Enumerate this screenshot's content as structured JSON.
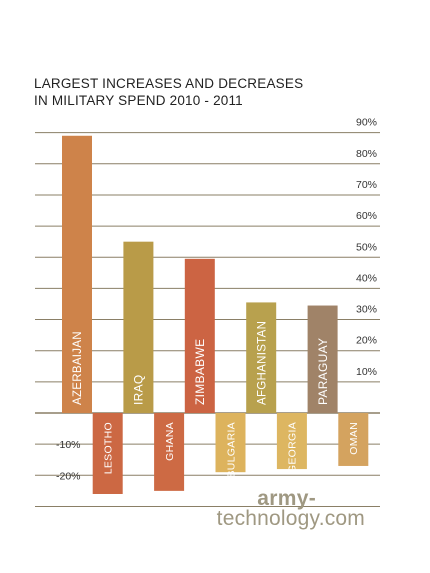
{
  "chart_data": {
    "type": "bar",
    "title": [
      "LARGEST INCREASES AND DECREASES",
      "IN MILITARY SPEND 2010 - 2011"
    ],
    "categories": [
      "AZERBAIJAN",
      "LESOTHO",
      "IRAQ",
      "GHANA",
      "ZIMBABWE",
      "BULGARIA",
      "AFGHANISTAN",
      "GEORGIA",
      "PARAGUAY",
      "OMAN"
    ],
    "values": [
      89,
      -26,
      55,
      -25,
      49.5,
      -19,
      35.5,
      -18,
      34.5,
      -17
    ],
    "bar_colors": [
      "#ce834a",
      "#cc6843",
      "#b99b48",
      "#cd6a44",
      "#cc6443",
      "#ddb35d",
      "#b8a14e",
      "#ddb661",
      "#a08368",
      "#d4a35f"
    ],
    "label_colors": [
      "#ffffff",
      "#ffffff",
      "#ffffff",
      "#ffffff",
      "#ffffff",
      "#ffffff",
      "#ffffff",
      "#ffffff",
      "#ffffff",
      "#ffffff"
    ],
    "ylim": [
      -25,
      90
    ],
    "right_ticks": [
      {
        "value": 90,
        "label": "90%"
      },
      {
        "value": 80,
        "label": "80%"
      },
      {
        "value": 70,
        "label": "70%"
      },
      {
        "value": 60,
        "label": "60%"
      },
      {
        "value": 50,
        "label": "50%"
      },
      {
        "value": 40,
        "label": "40%"
      },
      {
        "value": 30,
        "label": "30%"
      },
      {
        "value": 20,
        "label": "20%"
      },
      {
        "value": 10,
        "label": "10%"
      }
    ],
    "left_ticks": [
      {
        "value": -10,
        "label": "-10%"
      },
      {
        "value": -20,
        "label": "-20%"
      }
    ],
    "extra_gridlines": [
      -30
    ],
    "grid": true,
    "colors": {
      "gridline": "#8a7f66",
      "tick_text": "#333333"
    }
  },
  "brand": {
    "line1": "army-",
    "line2": "technology.com"
  }
}
